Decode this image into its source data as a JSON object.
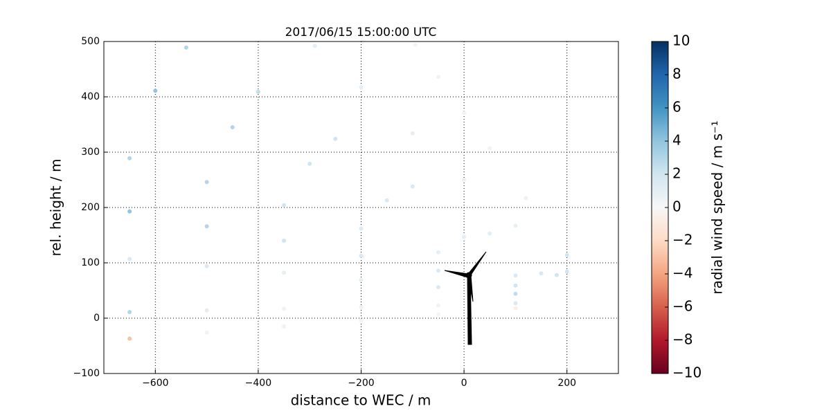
{
  "chart_data": {
    "type": "scatter",
    "title": "2017/06/15 15:00:00 UTC",
    "x_label": "distance to WEC / m",
    "y_label": "rel. height / m",
    "colorbar_label": "radial wind speed / m s⁻¹",
    "xlim": [
      -700,
      300
    ],
    "ylim": [
      -100,
      500
    ],
    "xticks": [
      {
        "value": -600,
        "label": "−600"
      },
      {
        "value": -400,
        "label": "−400"
      },
      {
        "value": -200,
        "label": "−200"
      },
      0,
      200
    ],
    "yticks": [
      {
        "value": -100,
        "label": "−100"
      },
      0,
      100,
      200,
      300,
      400,
      500
    ],
    "grid": true,
    "colormap": [
      "#67001f",
      "#b2182b",
      "#d6604d",
      "#f4a582",
      "#fddbc7",
      "#f7f7f7",
      "#d1e5f0",
      "#92c5de",
      "#4393c3",
      "#2166ac",
      "#053061"
    ],
    "clim": [
      -10,
      10
    ],
    "cticks": [
      {
        "value": -10,
        "label": "−10"
      },
      {
        "value": -8,
        "label": "−8"
      },
      {
        "value": -6,
        "label": "−6"
      },
      {
        "value": -4,
        "label": "−4"
      },
      {
        "value": -2,
        "label": "−2"
      },
      0,
      2,
      4,
      6,
      8,
      10
    ],
    "series": [
      {
        "x": [
          -650,
          -500,
          -350,
          -200,
          -50,
          100,
          -650,
          -500,
          -350,
          -200,
          -50,
          100,
          -650,
          -500,
          -350,
          -200,
          -50,
          100,
          -650,
          -500,
          -350,
          -200,
          -50,
          100,
          -650,
          -500,
          -350,
          -200,
          -50,
          100,
          -600,
          -450,
          -300,
          -150,
          0,
          150,
          -540,
          -400,
          -250,
          -100,
          50,
          180,
          -290,
          -200,
          -100,
          0,
          100,
          200,
          -95,
          -50,
          0,
          50,
          120,
          200
        ],
        "y": [
          -37,
          -26,
          -15,
          -4,
          7,
          18,
          11,
          14,
          17,
          20,
          23,
          27,
          107,
          94,
          82,
          69,
          56,
          44,
          193,
          166,
          140,
          113,
          86,
          59,
          289,
          246,
          204,
          162,
          119,
          77,
          411,
          345,
          279,
          213,
          147,
          81,
          489,
          409,
          324,
          238,
          153,
          78,
          492,
          417,
          334,
          250,
          167,
          84,
          494,
          436,
          371,
          307,
          217,
          114
        ],
        "values": [
          -3,
          0.5,
          0.5,
          0.3,
          0.2,
          -0.5,
          3,
          1,
          0.5,
          0.5,
          0.3,
          1.5,
          1.5,
          1.5,
          1,
          1,
          1.5,
          2.5,
          4,
          3,
          2,
          1.5,
          1.5,
          2,
          3,
          3,
          2,
          1.5,
          1,
          1.5,
          4,
          3,
          2,
          1.5,
          1,
          1.5,
          3,
          2.5,
          2,
          1.5,
          1,
          2,
          1,
          1,
          1,
          0.8,
          0.8,
          2,
          0.3,
          0.3,
          0.5,
          0.5,
          0.6,
          2
        ]
      }
    ]
  }
}
